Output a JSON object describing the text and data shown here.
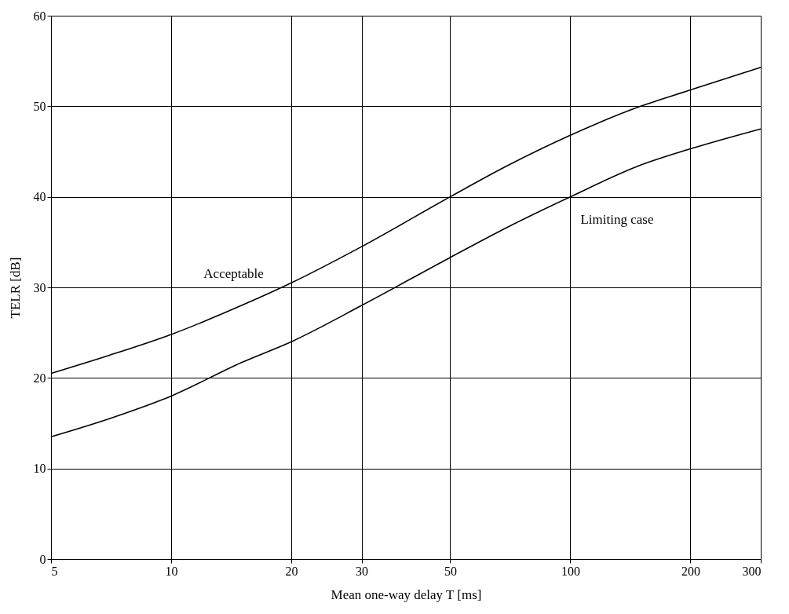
{
  "chart_data": {
    "type": "line",
    "xlabel": "Mean one-way delay T [ms]",
    "ylabel": "TELR [dB]",
    "log": "x",
    "grid": true,
    "marker": "none",
    "line_style": "solid",
    "xlim": [
      5,
      300
    ],
    "xticks": [
      5,
      10,
      20,
      30,
      50,
      100,
      200,
      300
    ],
    "ylim": [
      0,
      60
    ],
    "yticks": [
      0,
      10,
      20,
      30,
      40,
      50,
      60
    ],
    "x": [
      5,
      7,
      10,
      15,
      20,
      30,
      50,
      70,
      100,
      150,
      200,
      300
    ],
    "series": [
      {
        "name": "Acceptable",
        "color": "#000000",
        "values": [
          20.5,
          22.5,
          24.8,
          28,
          30.5,
          34.5,
          40,
          43.5,
          46.8,
          50,
          51.8,
          54.3
        ]
      },
      {
        "name": "Limiting case",
        "color": "#000000",
        "values": [
          13.5,
          15.5,
          18,
          21.7,
          24,
          28,
          33.3,
          36.7,
          40,
          43.5,
          45.3,
          47.5
        ]
      }
    ]
  }
}
